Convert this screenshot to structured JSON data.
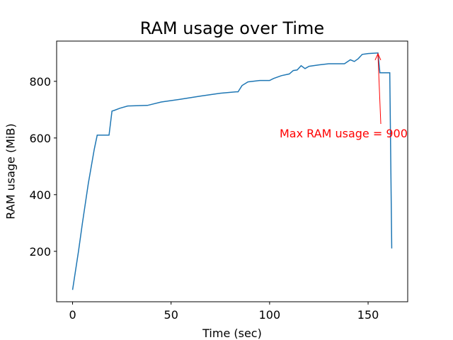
{
  "chart_data": {
    "type": "line",
    "title": "RAM usage over Time",
    "x_label": "Time (sec)",
    "y_label": "RAM usage (MiB)",
    "x": [
      0,
      3,
      5,
      8,
      11,
      12.5,
      18.5,
      20,
      21,
      24,
      28,
      38,
      45,
      55,
      65,
      75,
      83,
      84,
      86,
      89,
      95,
      100,
      102,
      106,
      110,
      112,
      114,
      116,
      118,
      120,
      125,
      130,
      138,
      141,
      143,
      145,
      147,
      150,
      155,
      156,
      161,
      162
    ],
    "series": [
      {
        "name": "RAM usage",
        "color": "#1f77b4",
        "values": [
          64,
          200,
          300,
          440,
          560,
          610,
          610,
          695,
          697,
          705,
          713,
          715,
          727,
          737,
          748,
          758,
          763,
          763,
          785,
          798,
          803,
          803,
          810,
          820,
          826,
          838,
          840,
          855,
          845,
          853,
          858,
          862,
          862,
          876,
          870,
          880,
          895,
          898,
          900,
          830,
          830,
          210
        ]
      }
    ],
    "xlim": [
      -8.1,
      170.1
    ],
    "ylim": [
      22,
      942
    ],
    "xticks": [
      0,
      50,
      100,
      150
    ],
    "yticks": [
      200,
      400,
      600,
      800
    ],
    "annotation": {
      "text": "Max RAM usage = 900",
      "color": "#ff0000"
    }
  }
}
